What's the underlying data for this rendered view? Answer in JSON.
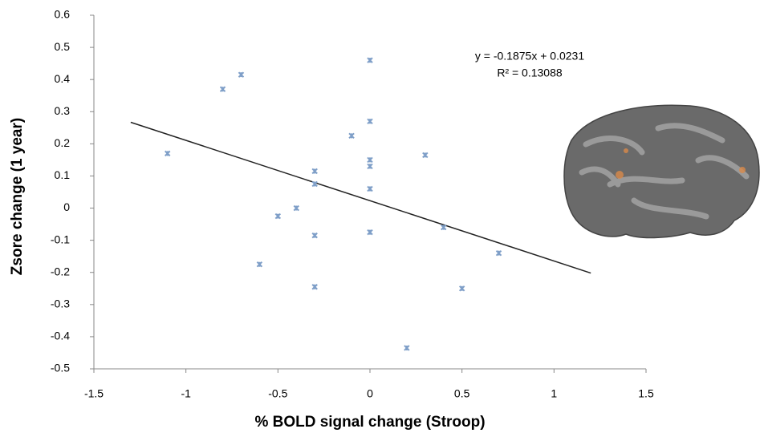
{
  "chart_data": {
    "type": "scatter",
    "x_label": "% BOLD signal change (Stroop)",
    "y_label": "Zsore change  (1 year)",
    "annotations": [
      "y = -0.1875x + 0.0231",
      "R² = 0.13088"
    ],
    "color": "#7f9fc8",
    "trendline": {
      "x": [
        -1.3,
        1.2
      ],
      "y": [
        0.267,
        -0.202
      ],
      "color": "#222222"
    },
    "series": [
      {
        "x": [
          -1.1,
          -0.8,
          -0.7,
          0,
          0,
          -0.1,
          0,
          0,
          -0.3,
          -0.3,
          0,
          0.3,
          -0.4,
          -0.5,
          0,
          -0.3,
          0.4,
          0.7,
          -0.6,
          -0.3,
          0.5,
          0.2
        ],
        "values": [
          0.17,
          0.37,
          0.415,
          0.46,
          0.27,
          0.225,
          0.15,
          0.13,
          0.115,
          0.075,
          0.06,
          0.165,
          0.0,
          -0.025,
          -0.075,
          -0.085,
          -0.06,
          -0.14,
          -0.175,
          -0.245,
          -0.25,
          -0.435
        ]
      }
    ],
    "xlim": [
      -1.5,
      1.5
    ],
    "xticks": [
      -1.5,
      -1,
      -0.5,
      0,
      0.5,
      1,
      1.5
    ],
    "ylim": [
      -0.5,
      0.6
    ],
    "yticks": [
      -0.5,
      -0.4,
      -0.3,
      -0.2,
      -0.1,
      0,
      0.1,
      0.2,
      0.3,
      0.4,
      0.5,
      0.6
    ],
    "grid": false
  }
}
